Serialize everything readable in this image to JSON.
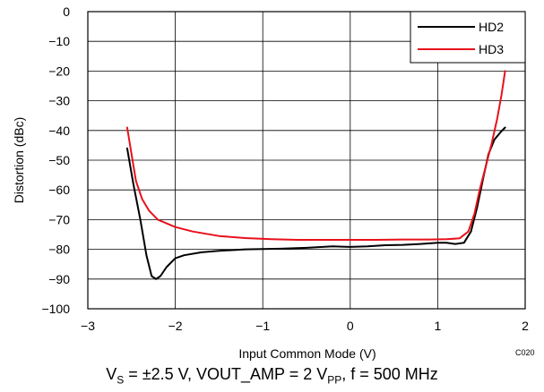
{
  "chart_data": {
    "type": "line",
    "xlabel": "Input Common Mode (V)",
    "ylabel": "Distortion (dBc)",
    "xlim": [
      -3,
      2
    ],
    "ylim": [
      -100,
      0
    ],
    "x_ticks": [
      -3,
      -2,
      -1,
      0,
      1,
      2
    ],
    "y_ticks": [
      0,
      -10,
      -20,
      -30,
      -40,
      -50,
      -60,
      -70,
      -80,
      -90,
      -100
    ],
    "x_tick_labels": [
      "−3",
      "−2",
      "−1",
      "0",
      "1",
      "2"
    ],
    "y_tick_labels": [
      "0",
      "−10",
      "−20",
      "−30",
      "−40",
      "−50",
      "−60",
      "−70",
      "−80",
      "−90",
      "−100"
    ],
    "grid": true,
    "legend_position": "top-right",
    "series": [
      {
        "name": "HD2",
        "color": "#000000",
        "points": [
          [
            -2.55,
            -46
          ],
          [
            -2.48,
            -58
          ],
          [
            -2.4,
            -70
          ],
          [
            -2.33,
            -82
          ],
          [
            -2.27,
            -89
          ],
          [
            -2.22,
            -90
          ],
          [
            -2.17,
            -89
          ],
          [
            -2.1,
            -86
          ],
          [
            -2.0,
            -83
          ],
          [
            -1.9,
            -82
          ],
          [
            -1.7,
            -81
          ],
          [
            -1.5,
            -80.5
          ],
          [
            -1.2,
            -80
          ],
          [
            -0.8,
            -79.8
          ],
          [
            -0.5,
            -79.5
          ],
          [
            -0.2,
            -79
          ],
          [
            0.0,
            -79.2
          ],
          [
            0.2,
            -79
          ],
          [
            0.4,
            -78.6
          ],
          [
            0.6,
            -78.5
          ],
          [
            0.8,
            -78.2
          ],
          [
            1.0,
            -77.8
          ],
          [
            1.1,
            -77.8
          ],
          [
            1.2,
            -78.2
          ],
          [
            1.3,
            -77.8
          ],
          [
            1.38,
            -74
          ],
          [
            1.45,
            -66
          ],
          [
            1.52,
            -56
          ],
          [
            1.58,
            -48
          ],
          [
            1.65,
            -43
          ],
          [
            1.72,
            -40.5
          ],
          [
            1.77,
            -39
          ]
        ]
      },
      {
        "name": "HD3",
        "color": "#e8111b",
        "points": [
          [
            -2.55,
            -39
          ],
          [
            -2.5,
            -48
          ],
          [
            -2.45,
            -57
          ],
          [
            -2.38,
            -63
          ],
          [
            -2.3,
            -67
          ],
          [
            -2.2,
            -70
          ],
          [
            -2.0,
            -72.5
          ],
          [
            -1.8,
            -74
          ],
          [
            -1.5,
            -75.5
          ],
          [
            -1.2,
            -76.2
          ],
          [
            -0.9,
            -76.6
          ],
          [
            -0.6,
            -76.8
          ],
          [
            -0.3,
            -76.8
          ],
          [
            0.0,
            -76.8
          ],
          [
            0.3,
            -76.8
          ],
          [
            0.6,
            -76.7
          ],
          [
            0.9,
            -76.7
          ],
          [
            1.1,
            -76.6
          ],
          [
            1.25,
            -76.3
          ],
          [
            1.35,
            -74
          ],
          [
            1.42,
            -68
          ],
          [
            1.48,
            -60
          ],
          [
            1.55,
            -52
          ],
          [
            1.62,
            -44
          ],
          [
            1.68,
            -36
          ],
          [
            1.73,
            -28
          ],
          [
            1.77,
            -20
          ]
        ]
      }
    ]
  },
  "corner_code": "C020",
  "caption": {
    "a": "V",
    "a_sub": "S",
    "b": " = ±2.5 V, VOUT_AMP = 2 V",
    "b_sub": "PP",
    "c": ", f = 500 MHz"
  }
}
